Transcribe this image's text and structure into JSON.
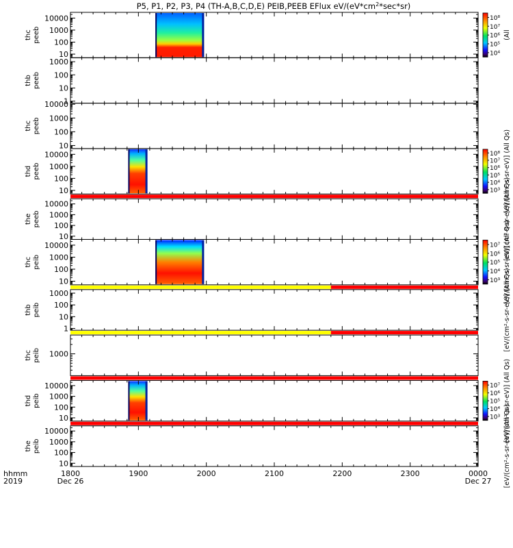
{
  "chart_data": {
    "type": "heatmap",
    "title": "P5, P1, P2, P3, P4 (TH-A,B,C,D,E) PEIB,PEEB EFlux eV/(eV*cm²*sec*sr)",
    "title_short": "P5, P1, P2, P3, P4 (TH-A,B,C,D,E) PEIB,PEEB EFlux eV/(eV*cm",
    "title_sup": "2",
    "title_tail": "*sec*sr)",
    "x_axis": {
      "units": "hhmm",
      "year": "2019",
      "range": [
        "1800",
        "0000"
      ],
      "range_minutes": [
        0,
        360
      ],
      "tick_labels": [
        "1800",
        "1900",
        "2000",
        "2100",
        "2200",
        "2300",
        "0000"
      ],
      "tick_minutes": [
        0,
        60,
        120,
        180,
        240,
        300,
        360
      ],
      "start_date": "Dec 26",
      "end_date": "Dec 27"
    },
    "y_scale": "log",
    "panels": [
      {
        "probe": "thc",
        "product": "peeb",
        "yrange": [
          5,
          30000
        ],
        "yticks": [
          10,
          100,
          1000,
          10000
        ],
        "ytick_labels": [
          "10",
          "100",
          "1000",
          "10000"
        ],
        "data_intervals": [
          [
            "1915",
            "1958"
          ]
        ],
        "colorbar": {
          "label": "[eV/(cm²-s-sr-eV)] (All Qs)",
          "label_visible": "(All",
          "tick_labels": [
            "10⁴",
            "10⁵",
            "10⁶",
            "10⁷",
            "10⁸"
          ]
        },
        "status_bar": null
      },
      {
        "probe": "thb",
        "product": "peeb",
        "yrange": [
          0.7,
          2000
        ],
        "yticks": [
          1,
          10,
          100,
          1000
        ],
        "ytick_labels": [
          "1",
          "10",
          "100",
          "1000"
        ],
        "data_intervals": [],
        "colorbar": null,
        "status_bar": null
      },
      {
        "probe": "thc",
        "product": "peeb",
        "yrange": [
          6,
          12000
        ],
        "yticks": [
          10,
          100,
          1000,
          10000
        ],
        "ytick_labels": [
          "10",
          "100",
          "1000",
          "10000"
        ],
        "data_intervals": [],
        "colorbar": null,
        "status_bar": null
      },
      {
        "probe": "thd",
        "product": "peeb",
        "yrange": [
          5,
          30000
        ],
        "yticks": [
          10,
          100,
          1000,
          10000
        ],
        "ytick_labels": [
          "10",
          "100",
          "1000",
          "10000"
        ],
        "data_intervals": [
          [
            "1851",
            "1908"
          ]
        ],
        "colorbar": {
          "label": "[eV/(cm²-s-sr-eV)] (All Qs)",
          "label_visible": "[eV/(cm²-s-sr-eV)] (All Qs)",
          "tick_labels": [
            "10³",
            "10⁴",
            "10⁵",
            "10⁶",
            "10⁷",
            "10⁸"
          ]
        },
        "status_bar": null
      },
      {
        "probe": "the",
        "product": "peeb",
        "yrange": [
          5,
          30000
        ],
        "yticks": [
          10,
          100,
          1000,
          10000
        ],
        "ytick_labels": [
          "10",
          "100",
          "1000",
          "10000"
        ],
        "data_intervals": [],
        "colorbar": {
          "label": "[eV/(cm²-s-sr-eV)] (All Qs)",
          "label_visible": "[eV/(cm²-s-sr-eV)] (All Qs)",
          "tick_labels": []
        },
        "status_bar": [
          {
            "from": "1800",
            "to": "0000",
            "color": "#ff0000"
          }
        ]
      },
      {
        "probe": "thc",
        "product": "peib",
        "yrange": [
          5,
          30000
        ],
        "yticks": [
          10,
          100,
          1000,
          10000
        ],
        "ytick_labels": [
          "10",
          "100",
          "1000",
          "10000"
        ],
        "data_intervals": [
          [
            "1915",
            "1958"
          ]
        ],
        "colorbar": {
          "label": "[eV/(cm²-s-sr-eV)] (All Qs)",
          "label_visible": "[eV/(cm²-s-sr-eV)] (All Qs)",
          "tick_labels": [
            "10³",
            "10⁴",
            "10⁵",
            "10⁶",
            "10⁷"
          ]
        },
        "status_bar": null
      },
      {
        "probe": "thb",
        "product": "peib",
        "yrange": [
          0.7,
          2000
        ],
        "yticks": [
          1,
          10,
          100,
          1000
        ],
        "ytick_labels": [
          "1",
          "10",
          "100",
          "1000"
        ],
        "data_intervals": [],
        "colorbar": {
          "label": "[eV/(cm²-s-sr-eV)] (All Qs)",
          "label_visible": "[eV/(cm²-s-sr-eV)] (All Qs)",
          "tick_labels": []
        },
        "status_bar": [
          {
            "from": "1800",
            "to": "2150",
            "color": "#ffff00"
          },
          {
            "from": "2150",
            "to": "0000",
            "color": "#ff0000"
          }
        ]
      },
      {
        "probe": "thc",
        "product": "peib",
        "yrange": [
          200,
          4000
        ],
        "yticks": [
          1000
        ],
        "ytick_labels": [
          "1000"
        ],
        "data_intervals": [],
        "colorbar": null,
        "status_bar": [
          {
            "from": "1800",
            "to": "2150",
            "color": "#ffff00"
          },
          {
            "from": "2150",
            "to": "0000",
            "color": "#ff0000"
          }
        ]
      },
      {
        "probe": "thd",
        "product": "peib",
        "yrange": [
          5,
          30000
        ],
        "yticks": [
          10,
          100,
          1000,
          10000
        ],
        "ytick_labels": [
          "10",
          "100",
          "1000",
          "10000"
        ],
        "data_intervals": [
          [
            "1851",
            "1908"
          ]
        ],
        "colorbar": {
          "label": "[eV/(cm²-s-sr-eV)] (All Qs)",
          "label_visible": "[eV/(cm²-s-sr-eV)] (All Qs)",
          "tick_labels": [
            "10³",
            "10⁴",
            "10⁵",
            "10⁶",
            "10⁷"
          ]
        },
        "status_bar": [
          {
            "from": "1800",
            "to": "0000",
            "color": "#ff0000"
          }
        ]
      },
      {
        "probe": "the",
        "product": "peib",
        "yrange": [
          5,
          30000
        ],
        "yticks": [
          10,
          100,
          1000,
          10000
        ],
        "ytick_labels": [
          "10",
          "100",
          "1000",
          "10000"
        ],
        "data_intervals": [],
        "colorbar": {
          "label": "[eV/(cm²-s-sr-eV)] (All Qs)",
          "label_visible": "[eV/(cm²-s-sr-eV)] (All Qs)",
          "tick_labels": []
        },
        "status_bar": [
          {
            "from": "1800",
            "to": "0000",
            "color": "#ff0000"
          }
        ]
      }
    ]
  }
}
